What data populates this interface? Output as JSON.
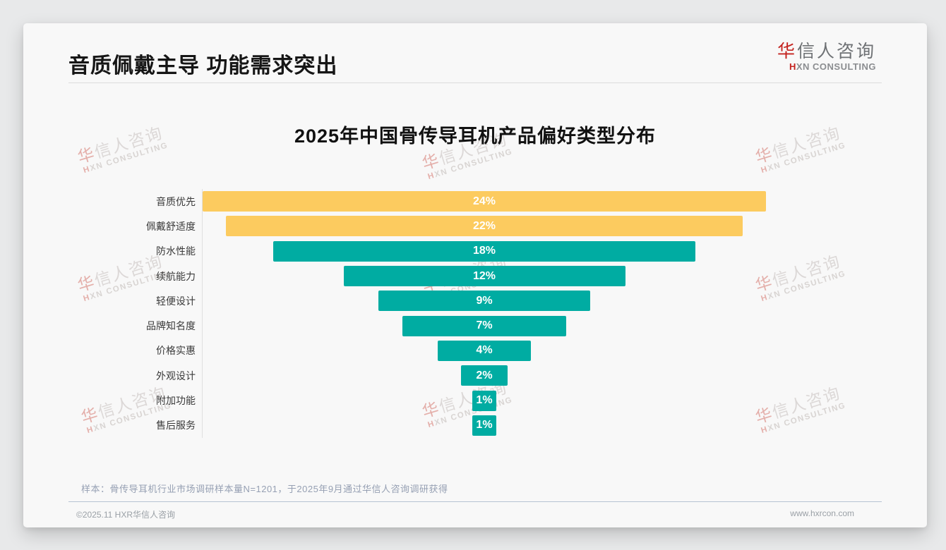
{
  "page": {
    "title": "音质佩戴主导 功能需求突出",
    "note": "样本：骨传导耳机行业市场调研样本量N=1201，于2025年9月通过华信人咨询调研获得",
    "footer": {
      "left": "©2025.11 HXR华信人咨询",
      "right": "www.hxrcon.com"
    }
  },
  "logo": {
    "line1_red": "华",
    "line1_rest": "信人咨询",
    "line2_red": "H",
    "line2_rest": "XN CONSULTING"
  },
  "watermark": {
    "line1_red": "华",
    "line1_rest": "信人咨询",
    "line2_red": "H",
    "line2_rest": "XN CONSULTING"
  },
  "chart_data": {
    "type": "bar",
    "variant": "horizontal-centered-funnel",
    "title": "2025年中国骨传导耳机产品偏好类型分布",
    "categories": [
      "音质优先",
      "佩戴舒适度",
      "防水性能",
      "续航能力",
      "轻便设计",
      "品牌知名度",
      "价格实惠",
      "外观设计",
      "附加功能",
      "售后服务"
    ],
    "values": [
      24,
      22,
      18,
      12,
      9,
      7,
      4,
      2,
      1,
      1
    ],
    "value_labels": [
      "24%",
      "22%",
      "18%",
      "12%",
      "9%",
      "7%",
      "4%",
      "2%",
      "1%",
      "1%"
    ],
    "colors": [
      "#FCCB5F",
      "#FCCB5F",
      "#00ACA2",
      "#00ACA2",
      "#00ACA2",
      "#00ACA2",
      "#00ACA2",
      "#00ACA2",
      "#00ACA2",
      "#00ACA2"
    ],
    "accent_yellow": "#FCCB5F",
    "accent_teal": "#00ACA2",
    "max_value": 24,
    "unit": "%",
    "value_label_position": "center-inside",
    "grid": false,
    "legend": false
  }
}
